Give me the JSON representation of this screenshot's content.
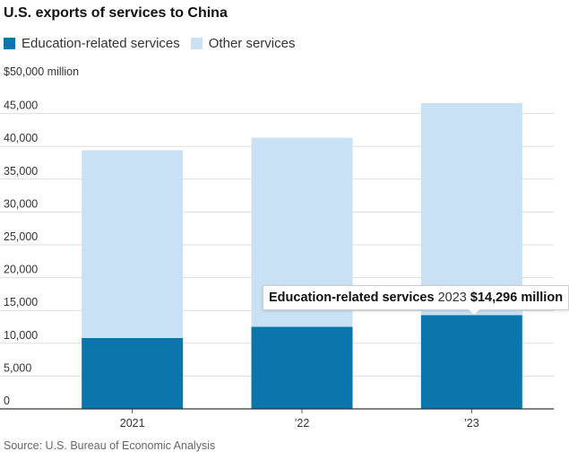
{
  "chart_data": {
    "type": "bar",
    "stacked": true,
    "title": "U.S. exports of services to China",
    "unit_label": "$50,000 million",
    "categories": [
      "2021",
      "’22",
      "’23"
    ],
    "series": [
      {
        "name": "Education-related services",
        "color": "#0a76ab",
        "values": [
          10800,
          12500,
          14296
        ]
      },
      {
        "name": "Other services",
        "color": "#c9e1f5",
        "values": [
          28600,
          28800,
          32300
        ]
      }
    ],
    "ylim": [
      0,
      50000
    ],
    "yticks": [
      0,
      5000,
      10000,
      15000,
      20000,
      25000,
      30000,
      35000,
      40000,
      45000,
      50000
    ],
    "ytick_labels": [
      "0",
      "5,000",
      "10,000",
      "15,000",
      "20,000",
      "25,000",
      "30,000",
      "35,000",
      "40,000",
      "45,000",
      "$50,000 million"
    ],
    "grid": true,
    "annotation": {
      "series": "Education-related services",
      "year": "2023",
      "value": "$14,296 million"
    },
    "source": "Source: U.S. Bureau of Economic Analysis"
  }
}
